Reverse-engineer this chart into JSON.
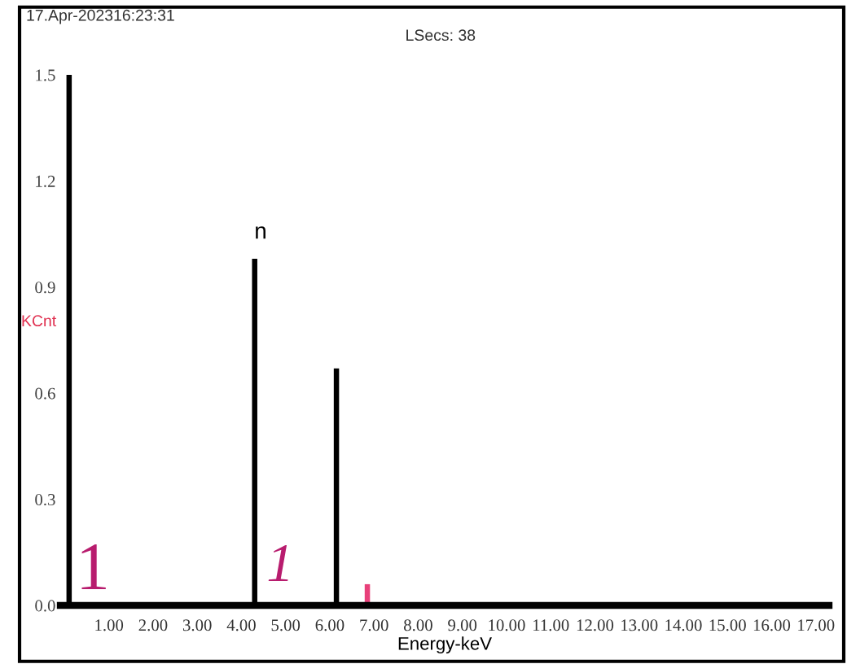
{
  "chart_data": {
    "type": "bar",
    "xlabel": "Energy-keV",
    "ylabel": "KCnt",
    "x": [
      0.1,
      4.3,
      6.15
    ],
    "series": [
      {
        "color": "#000000",
        "values": [
          1.5,
          0.98,
          0.67
        ]
      },
      {
        "color": "#e8407a",
        "x": [
          6.85
        ],
        "values": [
          0.06
        ]
      }
    ],
    "xlim": [
      -0.1,
      17.3
    ],
    "ylim": [
      0,
      1.5
    ],
    "xticks": [
      {
        "value": 1,
        "label": "1.00"
      },
      {
        "value": 2,
        "label": "2.00"
      },
      {
        "value": 3,
        "label": "3.00"
      },
      {
        "value": 4,
        "label": "4.00"
      },
      {
        "value": 5,
        "label": "5.00"
      },
      {
        "value": 6,
        "label": "6.00"
      },
      {
        "value": 7,
        "label": "7.00"
      },
      {
        "value": 8,
        "label": "8.00"
      },
      {
        "value": 9,
        "label": "9.00"
      },
      {
        "value": 10,
        "label": "10.00"
      },
      {
        "value": 11,
        "label": "11.00"
      },
      {
        "value": 12,
        "label": "12.00"
      },
      {
        "value": 13,
        "label": "13.00"
      },
      {
        "value": 14,
        "label": "14.00"
      },
      {
        "value": 15,
        "label": "15.00"
      },
      {
        "value": 16,
        "label": "16.00"
      },
      {
        "value": 17,
        "label": "17.00"
      }
    ],
    "yticks": [
      {
        "value": 0,
        "label": "0.0"
      },
      0.3,
      0.6,
      0.9,
      1.2,
      1.5
    ],
    "grid": false,
    "annotations": [
      "17.Apr-202316:23:31",
      "LSecs: 38",
      "n",
      "1",
      "1"
    ]
  }
}
